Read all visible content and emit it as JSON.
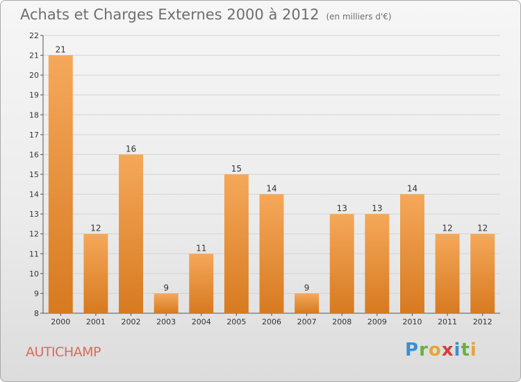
{
  "title": "Achats et Charges Externes 2000 à 2012",
  "title_unit": "(en milliers d'€)",
  "town": "AUTICHAMP",
  "logo": "Proxiti",
  "colors": {
    "bar_top": "#f5a85a",
    "bar_bottom": "#d77a20",
    "grid": "#d3d3d3",
    "axis": "#555555"
  },
  "chart_data": {
    "type": "bar",
    "title": "Achats et Charges Externes 2000 à 2012",
    "categories": [
      "2000",
      "2001",
      "2002",
      "2003",
      "2004",
      "2005",
      "2006",
      "2007",
      "2008",
      "2009",
      "2010",
      "2011",
      "2012"
    ],
    "values": [
      21,
      12,
      16,
      9,
      11,
      15,
      14,
      9,
      13,
      13,
      14,
      12,
      12
    ],
    "ylim": [
      8,
      22
    ],
    "yticks": [
      8,
      9,
      10,
      11,
      12,
      13,
      14,
      15,
      16,
      17,
      18,
      19,
      20,
      21,
      22
    ],
    "grid": true,
    "data_labels": true
  }
}
